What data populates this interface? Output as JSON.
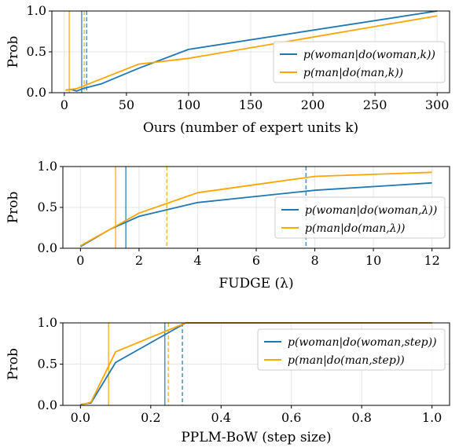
{
  "chart_data": [
    {
      "type": "line",
      "xlabel": "Ours (number of expert units k)",
      "ylabel": "Prob",
      "xlim": [
        -10,
        310
      ],
      "ylim": [
        0,
        1
      ],
      "xticks": [
        0,
        50,
        100,
        150,
        200,
        250,
        300
      ],
      "xtick_labels": [
        "0",
        "50",
        "100",
        "150",
        "200",
        "250",
        "300"
      ],
      "yticks": [
        0,
        0.5,
        1
      ],
      "ytick_labels": [
        "0.0",
        "0.5",
        "1.0"
      ],
      "grid": true,
      "legend_position": "center-right",
      "series": [
        {
          "name": "p(woman|do(woman,k))",
          "color": "#1f77b4",
          "x": [
            1,
            5,
            10,
            15,
            30,
            60,
            100,
            300
          ],
          "y": [
            0.03,
            0.04,
            0.02,
            0.05,
            0.11,
            0.3,
            0.53,
            1.0
          ]
        },
        {
          "name": "p(man|do(man,k))",
          "color": "#ffa500",
          "x": [
            1,
            5,
            10,
            15,
            30,
            60,
            100,
            300
          ],
          "y": [
            0.03,
            0.04,
            0.05,
            0.08,
            0.17,
            0.35,
            0.42,
            0.94
          ]
        }
      ],
      "vlines": [
        {
          "x": 14,
          "color": "#1f77b4",
          "style": "solid"
        },
        {
          "x": 18,
          "color": "#1f77b4",
          "style": "dashed"
        },
        {
          "x": 4,
          "color": "#ffa500",
          "style": "solid"
        },
        {
          "x": 16,
          "color": "#ffa500",
          "style": "dashed"
        }
      ]
    },
    {
      "type": "line",
      "xlabel": "FUDGE (λ)",
      "ylabel": "Prob",
      "xlim": [
        -0.6,
        12.6
      ],
      "ylim": [
        0,
        1
      ],
      "xticks": [
        0,
        2,
        4,
        6,
        8,
        10,
        12
      ],
      "xtick_labels": [
        "0",
        "2",
        "4",
        "6",
        "8",
        "10",
        "12"
      ],
      "yticks": [
        0,
        0.5,
        1
      ],
      "ytick_labels": [
        "0.0",
        "0.5",
        "1.0"
      ],
      "grid": true,
      "legend_position": "center-right",
      "series": [
        {
          "name": "p(woman|do(woman,λ))",
          "color": "#1f77b4",
          "x": [
            0,
            1,
            2,
            4,
            8,
            12
          ],
          "y": [
            0.02,
            0.23,
            0.39,
            0.56,
            0.71,
            0.8
          ]
        },
        {
          "name": "p(man|do(man,λ))",
          "color": "#ffa500",
          "x": [
            0,
            1,
            2,
            4,
            8,
            12
          ],
          "y": [
            0.03,
            0.23,
            0.43,
            0.68,
            0.88,
            0.93
          ]
        }
      ],
      "vlines": [
        {
          "x": 1.55,
          "color": "#1f77b4",
          "style": "solid"
        },
        {
          "x": 7.7,
          "color": "#1f77b4",
          "style": "dashed"
        },
        {
          "x": 1.2,
          "color": "#ffa500",
          "style": "solid"
        },
        {
          "x": 2.95,
          "color": "#ffa500",
          "style": "dashed"
        }
      ]
    },
    {
      "type": "line",
      "xlabel": "PPLM-BoW (step size)",
      "ylabel": "Prob",
      "xlim": [
        -0.05,
        1.05
      ],
      "ylim": [
        0,
        1
      ],
      "xticks": [
        0,
        0.2,
        0.4,
        0.6,
        0.8,
        1.0
      ],
      "xtick_labels": [
        "0.0",
        "0.2",
        "0.4",
        "0.6",
        "0.8",
        "1.0"
      ],
      "yticks": [
        0,
        0.5,
        1
      ],
      "ytick_labels": [
        "0.0",
        "0.5",
        "1.0"
      ],
      "grid": true,
      "legend_position": "top-right",
      "series": [
        {
          "name": "p(woman|do(woman,step))",
          "color": "#1f77b4",
          "x": [
            0,
            0.03,
            0.1,
            0.3,
            1.0
          ],
          "y": [
            0.01,
            0.03,
            0.52,
            1.0,
            1.0
          ]
        },
        {
          "name": "p(man|do(man,step))",
          "color": "#ffa500",
          "x": [
            0,
            0.03,
            0.1,
            0.3,
            1.0
          ],
          "y": [
            0.0,
            0.04,
            0.65,
            1.0,
            1.0
          ]
        }
      ],
      "vlines": [
        {
          "x": 0.24,
          "color": "#1f77b4",
          "style": "solid"
        },
        {
          "x": 0.29,
          "color": "#1f77b4",
          "style": "dashed"
        },
        {
          "x": 0.08,
          "color": "#ffa500",
          "style": "solid"
        },
        {
          "x": 0.25,
          "color": "#ffa500",
          "style": "dashed"
        }
      ]
    }
  ]
}
